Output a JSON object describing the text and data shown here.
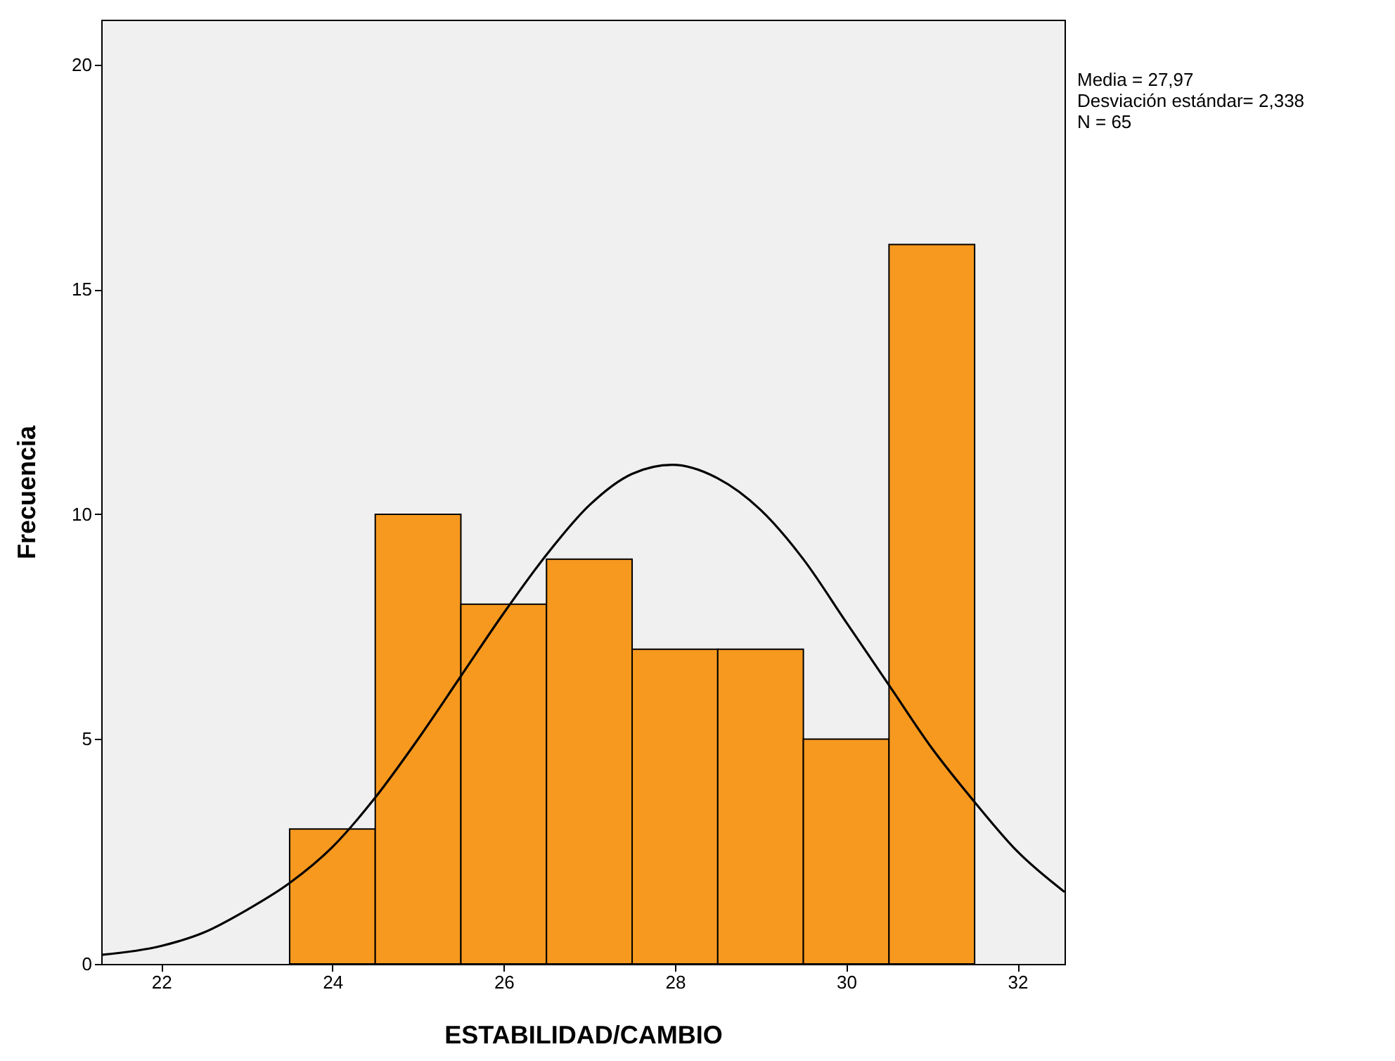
{
  "chart_data": {
    "type": "histogram",
    "xlabel": "ESTABILIDAD/CAMBIO",
    "ylabel": "Frecuencia",
    "annotations": [
      "Media = 27,97",
      "Desviación estándar= 2,338",
      "N = 65"
    ],
    "xlim": [
      21.3,
      32.55
    ],
    "xticks": [
      22,
      24,
      26,
      28,
      30,
      32
    ],
    "ylim": [
      0,
      21
    ],
    "yticks": [
      0,
      5,
      10,
      15,
      20
    ],
    "color": "#f7991f",
    "bins": [
      23.5,
      24.5,
      25.5,
      26.5,
      27.5,
      28.5,
      29.5,
      30.5,
      31.5
    ],
    "values": [
      3,
      10,
      8,
      9,
      7,
      7,
      5,
      16
    ],
    "series": [
      {
        "type": "line",
        "color": "#000000",
        "x": [
          21.3,
          22,
          22.5,
          23,
          23.5,
          24,
          24.5,
          25,
          25.5,
          26,
          26.5,
          27,
          27.5,
          27.97,
          28.5,
          29,
          29.5,
          30,
          30.5,
          31,
          31.5,
          32,
          32.55
        ],
        "values": [
          0.2,
          0.4,
          0.7,
          1.2,
          1.8,
          2.6,
          3.7,
          5.0,
          6.4,
          7.8,
          9.1,
          10.2,
          10.9,
          11.1,
          10.8,
          10.1,
          9.0,
          7.6,
          6.2,
          4.8,
          3.6,
          2.5,
          1.6
        ]
      }
    ]
  }
}
